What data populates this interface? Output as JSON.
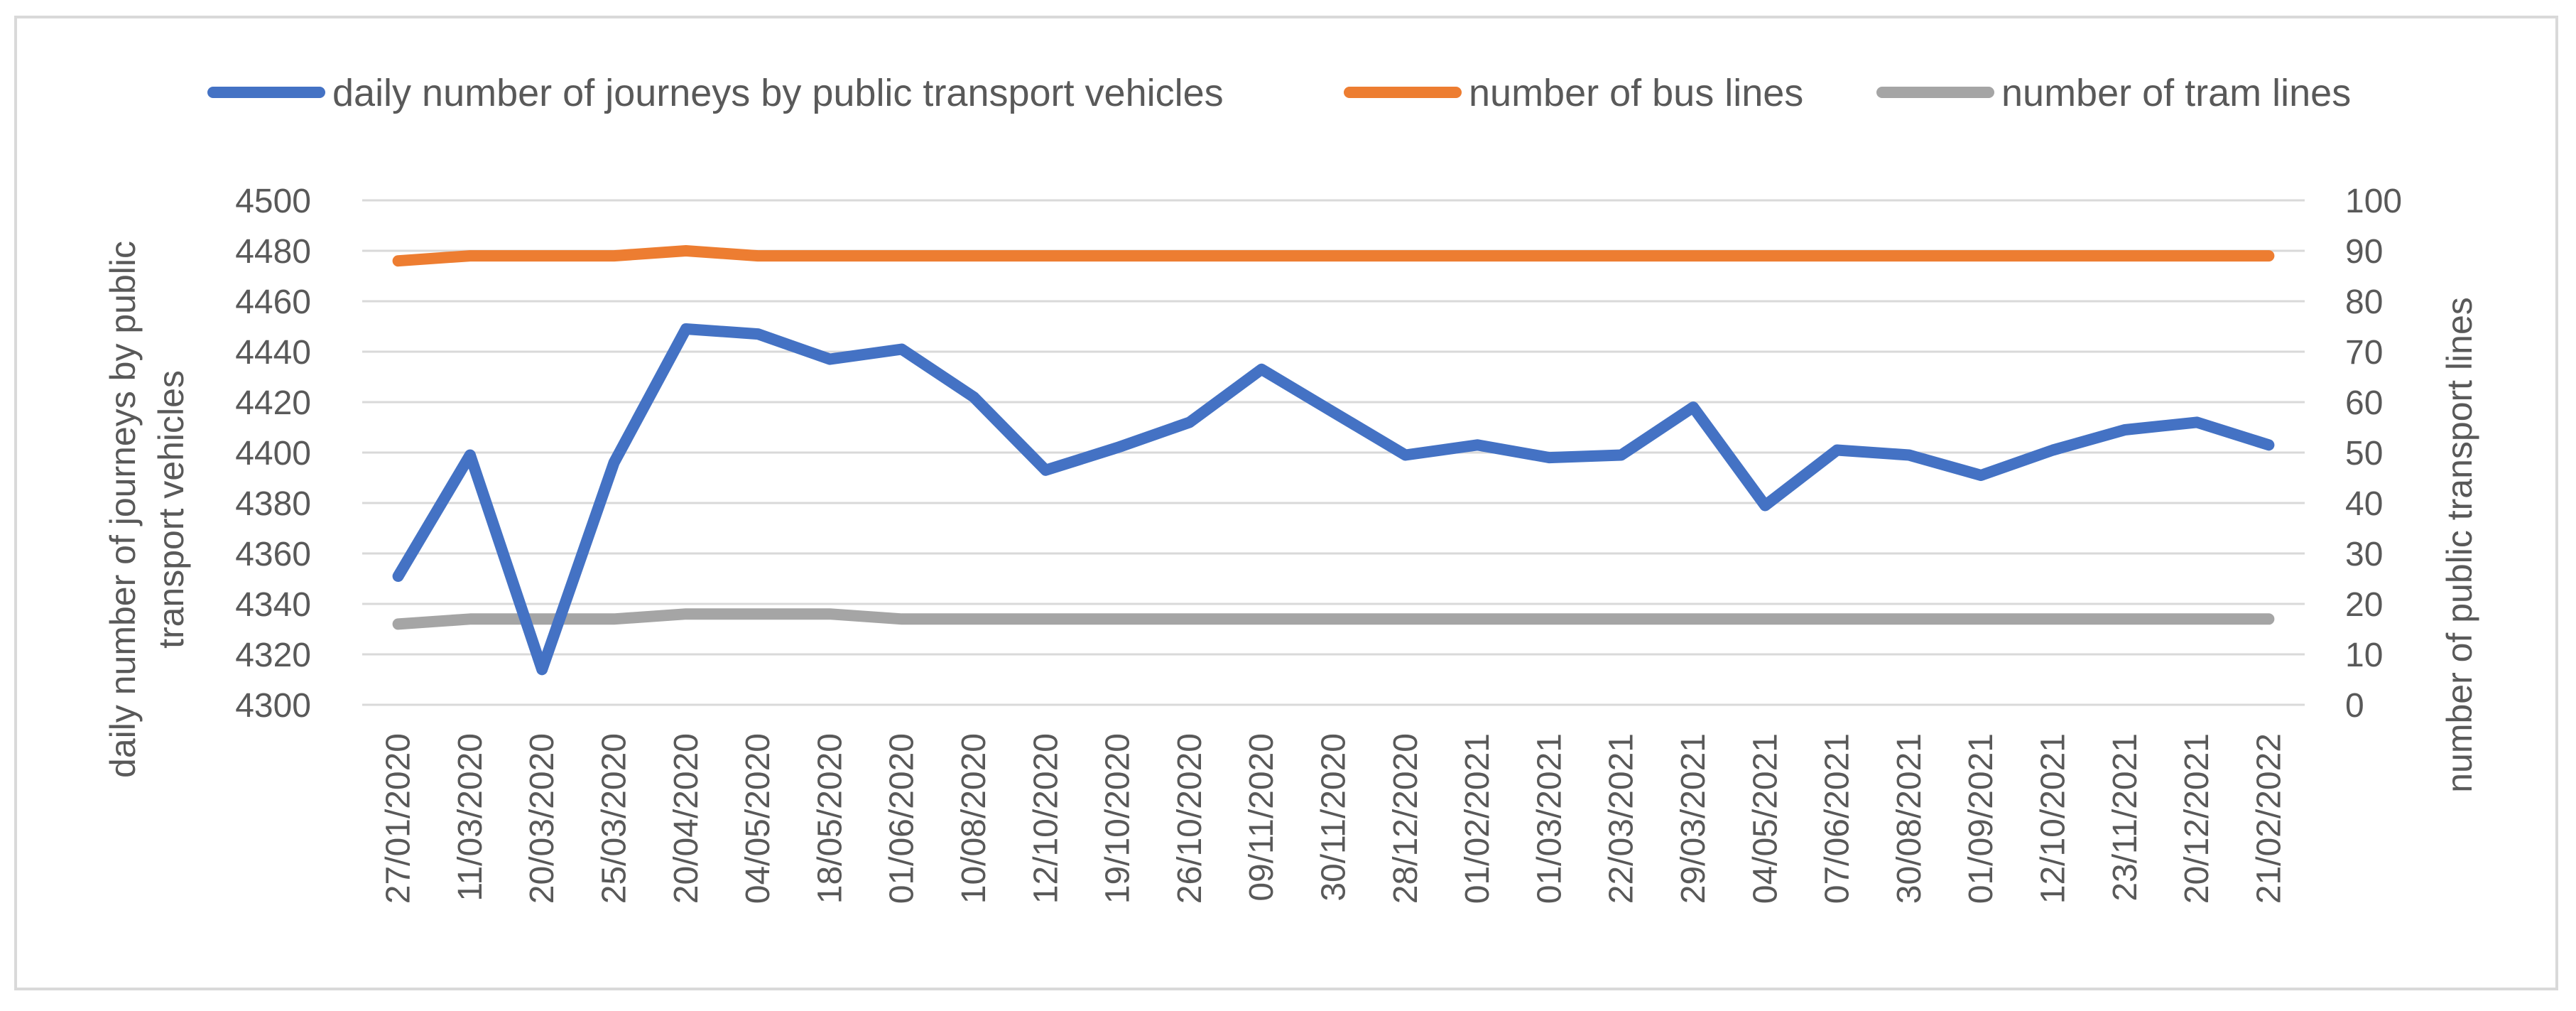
{
  "chart_data": {
    "type": "line",
    "title": "",
    "categories": [
      "27/01/2020",
      "11/03/2020",
      "20/03/2020",
      "25/03/2020",
      "20/04/2020",
      "04/05/2020",
      "18/05/2020",
      "01/06/2020",
      "10/08/2020",
      "12/10/2020",
      "19/10/2020",
      "26/10/2020",
      "09/11/2020",
      "30/11/2020",
      "28/12/2020",
      "01/02/2021",
      "01/03/2021",
      "22/03/2021",
      "29/03/2021",
      "04/05/2021",
      "07/06/2021",
      "30/08/2021",
      "01/09/2021",
      "12/10/2021",
      "23/11/2021",
      "20/12/2021",
      "21/02/2022"
    ],
    "ylabel_left": "daily number of journeys by public transport vehicles",
    "ylabel_right": "number of public transport lines",
    "ylim_left": [
      4300,
      4500
    ],
    "ylim_right": [
      0,
      100
    ],
    "yticks_left": [
      "4300",
      "4320",
      "4340",
      "4360",
      "4380",
      "4400",
      "4420",
      "4440",
      "4460",
      "4480",
      "4500"
    ],
    "yticks_right": [
      "0",
      "10",
      "20",
      "30",
      "40",
      "50",
      "60",
      "70",
      "80",
      "90",
      "100"
    ],
    "grid": true,
    "legend_position": "top",
    "series": [
      {
        "name": "daily number of journeys by public transport vehicles",
        "axis": "left",
        "color": "#4472c4",
        "values": [
          4351,
          4399,
          4314,
          4396,
          4449,
          4447,
          4437,
          4441,
          4422,
          4393,
          4402,
          4412,
          4433,
          4416,
          4399,
          4403,
          4398,
          4399,
          4418,
          4379,
          4401,
          4399,
          4391,
          4401,
          4409,
          4412,
          4403
        ]
      },
      {
        "name": "number of bus lines",
        "axis": "right",
        "color": "#ed7d31",
        "values": [
          88,
          89,
          89,
          89,
          90,
          89,
          89,
          89,
          89,
          89,
          89,
          89,
          89,
          89,
          89,
          89,
          89,
          89,
          89,
          89,
          89,
          89,
          89,
          89,
          89,
          89,
          89
        ]
      },
      {
        "name": "number of tram lines",
        "axis": "right",
        "color": "#a5a5a5",
        "values": [
          16,
          17,
          17,
          17,
          18,
          18,
          18,
          17,
          17,
          17,
          17,
          17,
          17,
          17,
          17,
          17,
          17,
          17,
          17,
          17,
          17,
          17,
          17,
          17,
          17,
          17,
          17
        ]
      }
    ]
  }
}
